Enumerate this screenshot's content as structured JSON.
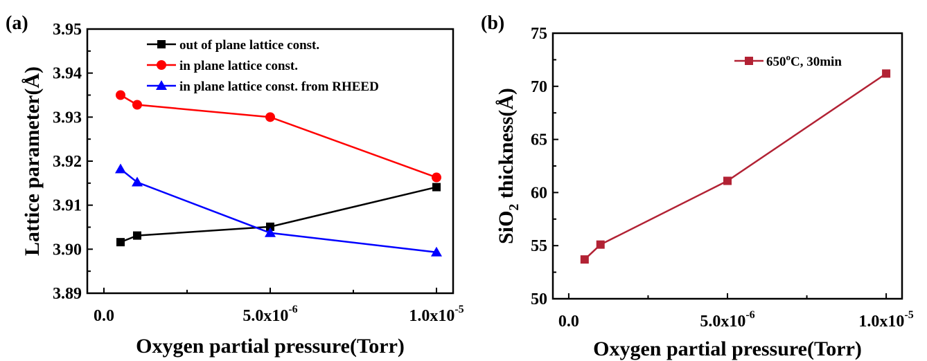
{
  "chart_data": [
    {
      "type": "line",
      "panel_label": "(a)",
      "xlabel": "Oxygen partial pressure(Torr)",
      "ylabel": "Lattice parameter(Å)",
      "xlim": [
        -5e-07,
        1.05e-05
      ],
      "ylim": [
        3.89,
        3.95
      ],
      "xticks": [
        0,
        5e-06,
        1e-05
      ],
      "xtick_labels": [
        {
          "base": "0.0",
          "exp": ""
        },
        {
          "base": "5.0x10",
          "exp": "-6"
        },
        {
          "base": "1.0x10",
          "exp": "-5"
        }
      ],
      "yticks": [
        3.89,
        3.9,
        3.91,
        3.92,
        3.93,
        3.94,
        3.95
      ],
      "ytick_labels": [
        "3.89",
        "3.90",
        "3.91",
        "3.92",
        "3.93",
        "3.94",
        "3.95"
      ],
      "legend_position": "top-right",
      "grid": false,
      "series": [
        {
          "name": "out of plane lattice const.",
          "color": "#000000",
          "marker": "square",
          "x": [
            5e-07,
            1e-06,
            5e-06,
            1e-05
          ],
          "y": [
            3.9016,
            3.9031,
            3.9051,
            3.9141
          ]
        },
        {
          "name": "in plane lattice const.",
          "color": "#ff0000",
          "marker": "circle",
          "x": [
            5e-07,
            1e-06,
            5e-06,
            1e-05
          ],
          "y": [
            3.935,
            3.9328,
            3.93,
            3.9163
          ]
        },
        {
          "name": "in plane lattice const. from RHEED",
          "color": "#0000ff",
          "marker": "triangle",
          "x": [
            5e-07,
            1e-06,
            5e-06,
            1e-05
          ],
          "y": [
            3.9182,
            3.9152,
            3.9037,
            3.8993
          ]
        }
      ]
    },
    {
      "type": "line",
      "panel_label": "(b)",
      "xlabel": "Oxygen partial pressure(Torr)",
      "ylabel": "SiO2 thickness(Å)",
      "xlim": [
        -5e-07,
        1.05e-05
      ],
      "ylim": [
        50,
        75
      ],
      "xticks": [
        0,
        5e-06,
        1e-05
      ],
      "xtick_labels": [
        {
          "base": "0.0",
          "exp": ""
        },
        {
          "base": "5.0x10",
          "exp": "-6"
        },
        {
          "base": "1.0x10",
          "exp": "-5"
        }
      ],
      "yticks": [
        50,
        55,
        60,
        65,
        70,
        75
      ],
      "ytick_labels": [
        "50",
        "55",
        "60",
        "65",
        "70",
        "75"
      ],
      "legend_position": "top-right",
      "grid": false,
      "series": [
        {
          "name": "650oC, 30min",
          "color": "#b22234",
          "marker": "square",
          "x": [
            5e-07,
            1e-06,
            5e-06,
            1e-05
          ],
          "y": [
            53.7,
            55.1,
            61.1,
            71.2
          ]
        }
      ]
    }
  ]
}
